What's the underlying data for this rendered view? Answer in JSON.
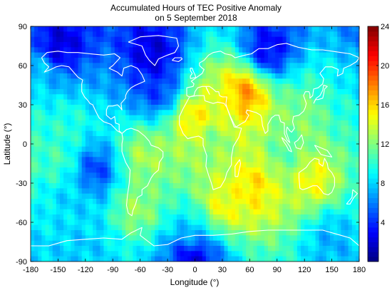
{
  "chart_data": {
    "type": "heatmap",
    "title": "Accumulated Hours of TEC Positive Anomaly",
    "subtitle": "on 5 September 2018",
    "xlabel": "Longitude (°)",
    "ylabel": "Latitude (°)",
    "xlim": [
      -180,
      180
    ],
    "ylim": [
      -90,
      90
    ],
    "x_ticks": [
      -180,
      -150,
      -120,
      -90,
      -60,
      -30,
      0,
      30,
      60,
      90,
      120,
      150,
      180
    ],
    "y_ticks": [
      -90,
      -60,
      -30,
      0,
      30,
      60,
      90
    ],
    "colorbar": {
      "min": 0,
      "max": 24,
      "ticks": [
        4,
        8,
        12,
        16,
        20,
        24
      ],
      "colormap": "jet"
    },
    "grid": false,
    "overlay": "coastlines (white)",
    "hotspots": [
      {
        "lon": 55,
        "lat": 38,
        "value": 22
      },
      {
        "lon": 0,
        "lat": 20,
        "value": 19
      },
      {
        "lon": 30,
        "lat": 26,
        "value": 17
      },
      {
        "lon": 65,
        "lat": -33,
        "value": 19
      },
      {
        "lon": 30,
        "lat": -48,
        "value": 18
      },
      {
        "lon": 130,
        "lat": -28,
        "value": 18
      },
      {
        "lon": -55,
        "lat": -10,
        "value": 15
      },
      {
        "lon": -65,
        "lat": -48,
        "value": 15
      },
      {
        "lon": 120,
        "lat": 20,
        "value": 14
      },
      {
        "lon": -150,
        "lat": -15,
        "value": 12
      },
      {
        "lon": -140,
        "lat": 15,
        "value": 11
      },
      {
        "lon": 165,
        "lat": 22,
        "value": 11
      },
      {
        "lon": -120,
        "lat": -70,
        "value": 9
      },
      {
        "lon": 0,
        "lat": -70,
        "value": 9
      },
      {
        "lon": 150,
        "lat": -70,
        "value": 8
      },
      {
        "lon": 100,
        "lat": -5,
        "value": 12
      },
      {
        "lon": -170,
        "lat": 55,
        "value": 9
      },
      {
        "lon": -130,
        "lat": -40,
        "value": 9
      },
      {
        "lon": 20,
        "lat": 5,
        "value": 13
      }
    ],
    "lows": [
      {
        "lon": -45,
        "lat": 65,
        "value": 1
      },
      {
        "lon": 80,
        "lat": 70,
        "value": 2
      },
      {
        "lon": -150,
        "lat": 72,
        "value": 1
      },
      {
        "lon": -110,
        "lat": -20,
        "value": 3
      },
      {
        "lon": -40,
        "lat": 40,
        "value": 4
      },
      {
        "lon": 0,
        "lat": -85,
        "value": 1
      }
    ]
  }
}
